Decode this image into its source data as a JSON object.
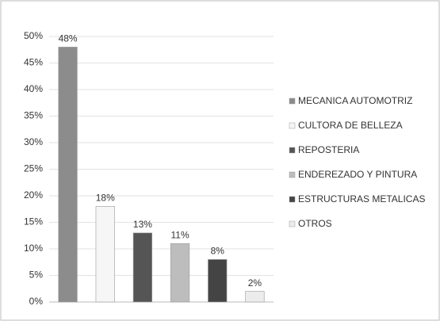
{
  "chart_data": {
    "type": "bar",
    "categories": [
      "MECANICA AUTOMOTRIZ",
      "CULTORA DE BELLEZA",
      "REPOSTERIA",
      "ENDEREZADO Y PINTURA",
      "ESTRUCTURAS METALICAS",
      "OTROS"
    ],
    "values": [
      48,
      18,
      13,
      11,
      8,
      2
    ],
    "value_labels": [
      "48%",
      "18%",
      "13%",
      "11%",
      "8%",
      "2%"
    ],
    "colors": [
      "#8c8c8c",
      "#f6f6f6",
      "#555555",
      "#bdbdbd",
      "#444444",
      "#ececec"
    ],
    "ylim": [
      0,
      50
    ],
    "yticks": [
      {
        "value": 0,
        "label": "0%"
      },
      {
        "value": 5,
        "label": "5%"
      },
      {
        "value": 10,
        "label": "10%"
      },
      {
        "value": 15,
        "label": "15%"
      },
      {
        "value": 20,
        "label": "20%"
      },
      {
        "value": 25,
        "label": "25%"
      },
      {
        "value": 30,
        "label": "30%"
      },
      {
        "value": 35,
        "label": "35%"
      },
      {
        "value": 40,
        "label": "40%"
      },
      {
        "value": 45,
        "label": "45%"
      },
      {
        "value": 50,
        "label": "50%"
      }
    ],
    "grid": true,
    "legend": "right"
  }
}
